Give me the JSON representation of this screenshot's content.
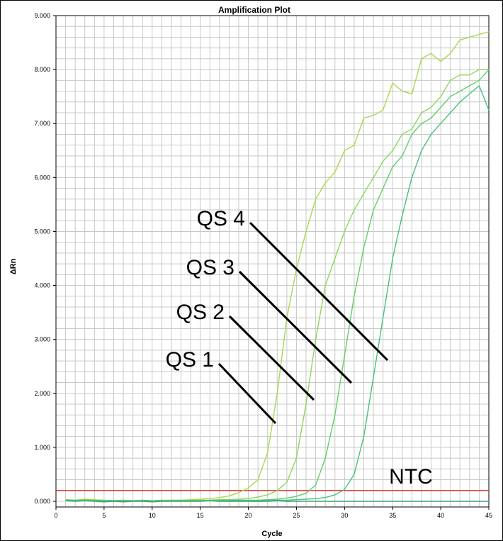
{
  "chart_data": {
    "type": "line",
    "title": "Amplification Plot",
    "xlabel": "Cycle",
    "ylabel": "ΔRn",
    "xlim": [
      0,
      45
    ],
    "ylim": [
      -0.1,
      9.0
    ],
    "grid": true,
    "x_ticks": [
      "0",
      "5",
      "10",
      "15",
      "20",
      "25",
      "30",
      "35",
      "40",
      "45"
    ],
    "y_ticks": [
      "0.000",
      "1.000",
      "2.000",
      "3.000",
      "4.000",
      "5.000",
      "6.000",
      "7.000",
      "8.000",
      "9.000"
    ],
    "threshold": 0.2,
    "threshold_color": "#e0251e",
    "series": [
      {
        "name": "QS 1",
        "color": "#a8d84a",
        "x": [
          1,
          2,
          3,
          4,
          5,
          6,
          7,
          8,
          9,
          10,
          11,
          12,
          13,
          14,
          15,
          16,
          17,
          18,
          19,
          20,
          21,
          22,
          23,
          24,
          25,
          26,
          27,
          28,
          29,
          30,
          31,
          32,
          33,
          34,
          35,
          36,
          37,
          38,
          39,
          40,
          41,
          42,
          43,
          44,
          45
        ],
        "y": [
          0.03,
          0.02,
          0.04,
          0.03,
          0.02,
          0.01,
          0.02,
          0.01,
          0.02,
          0.01,
          0.02,
          0.02,
          0.02,
          0.03,
          0.04,
          0.05,
          0.07,
          0.1,
          0.16,
          0.25,
          0.4,
          0.9,
          2.0,
          3.4,
          4.3,
          5.0,
          5.6,
          5.9,
          6.1,
          6.5,
          6.6,
          7.1,
          7.15,
          7.25,
          7.75,
          7.6,
          7.55,
          8.2,
          8.3,
          8.15,
          8.3,
          8.55,
          8.6,
          8.65,
          8.7
        ]
      },
      {
        "name": "QS 2",
        "color": "#8ad85a",
        "x": [
          1,
          2,
          3,
          4,
          5,
          6,
          7,
          8,
          9,
          10,
          11,
          12,
          13,
          14,
          15,
          16,
          17,
          18,
          19,
          20,
          21,
          22,
          23,
          24,
          25,
          26,
          27,
          28,
          29,
          30,
          31,
          32,
          33,
          34,
          35,
          36,
          37,
          38,
          39,
          40,
          41,
          42,
          43,
          44,
          45
        ],
        "y": [
          0.03,
          0.02,
          0.03,
          0.02,
          0.02,
          0.01,
          0.02,
          0.01,
          0.02,
          0.01,
          0.01,
          0.02,
          0.02,
          0.02,
          0.02,
          0.02,
          0.03,
          0.03,
          0.04,
          0.05,
          0.08,
          0.12,
          0.2,
          0.35,
          0.8,
          1.8,
          3.0,
          4.0,
          4.5,
          5.0,
          5.4,
          5.7,
          6.0,
          6.3,
          6.5,
          6.8,
          6.9,
          7.2,
          7.3,
          7.5,
          7.8,
          7.9,
          7.9,
          8.0,
          8.0
        ]
      },
      {
        "name": "QS 3",
        "color": "#5ed068",
        "x": [
          1,
          2,
          3,
          4,
          5,
          6,
          7,
          8,
          9,
          10,
          11,
          12,
          13,
          14,
          15,
          16,
          17,
          18,
          19,
          20,
          21,
          22,
          23,
          24,
          25,
          26,
          27,
          28,
          29,
          30,
          31,
          32,
          33,
          34,
          35,
          36,
          37,
          38,
          39,
          40,
          41,
          42,
          43,
          44,
          45
        ],
        "y": [
          0.02,
          0.02,
          0.02,
          0.01,
          0.01,
          0.01,
          0.01,
          0.01,
          0.01,
          0.01,
          0.01,
          0.01,
          0.01,
          0.01,
          0.01,
          0.02,
          0.02,
          0.02,
          0.02,
          0.02,
          0.02,
          0.03,
          0.04,
          0.06,
          0.09,
          0.15,
          0.3,
          0.8,
          1.6,
          2.7,
          3.8,
          4.7,
          5.4,
          5.8,
          6.2,
          6.4,
          6.8,
          7.0,
          7.1,
          7.3,
          7.5,
          7.6,
          7.7,
          7.8,
          8.0
        ]
      },
      {
        "name": "QS 4",
        "color": "#44c27a",
        "x": [
          1,
          2,
          3,
          4,
          5,
          6,
          7,
          8,
          9,
          10,
          11,
          12,
          13,
          14,
          15,
          16,
          17,
          18,
          19,
          20,
          21,
          22,
          23,
          24,
          25,
          26,
          27,
          28,
          29,
          30,
          31,
          32,
          33,
          34,
          35,
          36,
          37,
          38,
          39,
          40,
          41,
          42,
          43,
          44,
          45
        ],
        "y": [
          0.02,
          0.01,
          0.01,
          0.01,
          0.01,
          0.01,
          0.01,
          0.01,
          0.01,
          0.01,
          0.01,
          0.01,
          0.01,
          0.01,
          0.01,
          0.01,
          0.01,
          0.01,
          0.01,
          0.01,
          0.01,
          0.02,
          0.02,
          0.02,
          0.03,
          0.04,
          0.05,
          0.07,
          0.12,
          0.22,
          0.5,
          1.2,
          2.3,
          3.4,
          4.5,
          5.3,
          6.0,
          6.5,
          6.8,
          7.0,
          7.2,
          7.4,
          7.55,
          7.7,
          7.25
        ]
      },
      {
        "name": "NTC",
        "color": "#3aa07a",
        "x": [
          1,
          2,
          3,
          4,
          5,
          6,
          7,
          8,
          9,
          10,
          11,
          12,
          13,
          14,
          15,
          16,
          17,
          18,
          19,
          20,
          21,
          22,
          23,
          24,
          25,
          26,
          27,
          28,
          29,
          30,
          31,
          32,
          33,
          34,
          35,
          36,
          37,
          38,
          39,
          40,
          41,
          42,
          43,
          44,
          45
        ],
        "y": [
          0.01,
          0.0,
          0.01,
          0.0,
          -0.01,
          0.0,
          -0.01,
          0.0,
          0.0,
          -0.01,
          0.0,
          0.0,
          0.0,
          0.0,
          0.0,
          0.01,
          0.0,
          0.0,
          0.0,
          0.0,
          0.0,
          0.0,
          0.01,
          0.0,
          0.0,
          0.0,
          0.0,
          0.0,
          0.0,
          0.0,
          0.0,
          0.0,
          0.0,
          0.0,
          0.0,
          0.0,
          0.0,
          0.0,
          0.0,
          0.0,
          0.0,
          0.0,
          0.0,
          0.0,
          0.0
        ]
      }
    ],
    "annotations": [
      {
        "text": "QS 4",
        "target_series": "QS 4"
      },
      {
        "text": "QS 3",
        "target_series": "QS 3"
      },
      {
        "text": "QS 2",
        "target_series": "QS 2"
      },
      {
        "text": "QS 1",
        "target_series": "QS 1"
      },
      {
        "text": "NTC",
        "target_series": "NTC"
      }
    ]
  }
}
